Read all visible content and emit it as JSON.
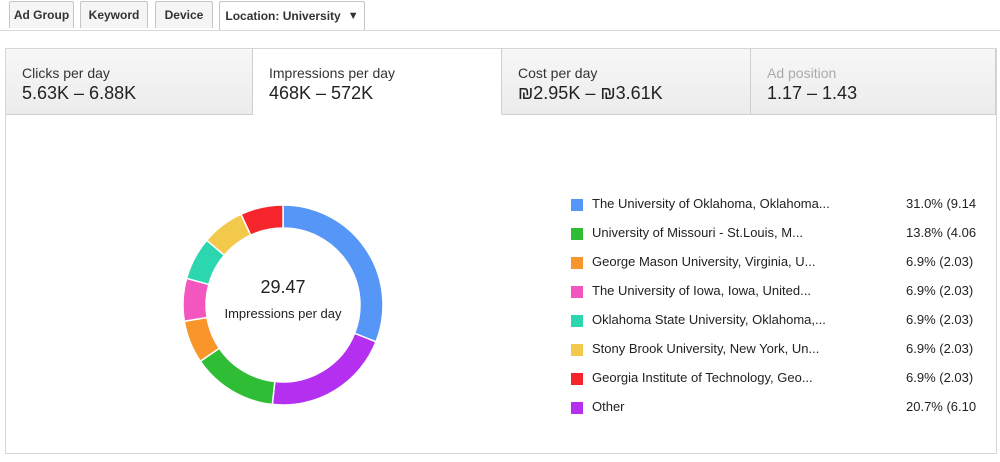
{
  "filter_tabs": [
    {
      "label": "Ad Group"
    },
    {
      "label": "Keyword"
    },
    {
      "label": "Device"
    },
    {
      "label": "Location: University",
      "caret": "▼"
    }
  ],
  "metric_tabs": [
    {
      "label": "Clicks per day",
      "value": "5.63K – 6.88K",
      "state": "normal"
    },
    {
      "label": "Impressions per day",
      "value": "468K – 572K",
      "state": "active"
    },
    {
      "label": "Cost per day",
      "value": "₪2.95K – ₪3.61K",
      "state": "normal"
    },
    {
      "label": "Ad position",
      "value": "1.17 – 1.43",
      "state": "disabled"
    }
  ],
  "donut_center": {
    "value": "29.47",
    "label": "Impressions per day"
  },
  "chart_data": {
    "type": "pie",
    "donut": true,
    "legend_position": "right",
    "series": [
      {
        "name": "The University of Oklahoma, Oklahoma...",
        "percent": 31.0,
        "display": "31.0% (9.14",
        "color": "#5596f7"
      },
      {
        "name": "Other",
        "percent": 20.7,
        "display": "20.7% (6.10",
        "color": "#b42ff0"
      },
      {
        "name": "University of Missouri - St.Louis, M...",
        "percent": 13.8,
        "display": "13.8% (4.06",
        "color": "#2fbd35"
      },
      {
        "name": "George Mason University, Virginia, U...",
        "percent": 6.9,
        "display": "6.9% (2.03)",
        "color": "#f8962c"
      },
      {
        "name": "The University of Iowa, Iowa, United...",
        "percent": 6.9,
        "display": "6.9% (2.03)",
        "color": "#f456bf"
      },
      {
        "name": "Oklahoma State University, Oklahoma,...",
        "percent": 6.9,
        "display": "6.9% (2.03)",
        "color": "#2cd6af"
      },
      {
        "name": "Stony Brook University, New York, Un...",
        "percent": 6.9,
        "display": "6.9% (2.03)",
        "color": "#f2c94a"
      },
      {
        "name": "Georgia Institute of Technology, Geo...",
        "percent": 6.9,
        "display": "6.9% (2.03)",
        "color": "#f5252b"
      }
    ],
    "legend_order": [
      0,
      2,
      3,
      4,
      5,
      6,
      7,
      1
    ]
  }
}
